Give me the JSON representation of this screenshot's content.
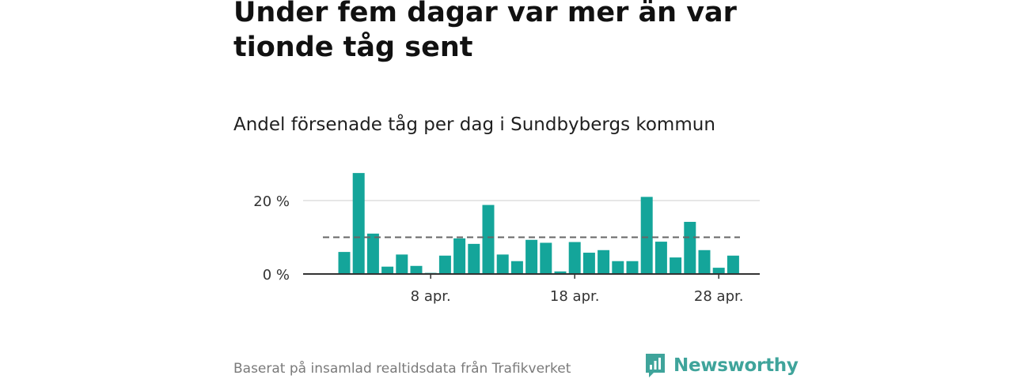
{
  "title": "Under fem dagar var mer än var tionde tåg sent",
  "subtitle": "Andel försenade tåg per dag i Sundbybergs kommun",
  "source": "Baserat på insamlad realtidsdata från Trafikverket",
  "brand": {
    "name": "Newsworthy",
    "color": "#3fa49b",
    "icon": "newsworthy-logo-icon"
  },
  "chart_data": {
    "type": "bar",
    "x_start_day": 2,
    "month_label": "apr.",
    "values": [
      6,
      27.5,
      11,
      2,
      5.3,
      2.2,
      0.3,
      5,
      9.7,
      8.2,
      18.8,
      5.3,
      3.5,
      9.3,
      8.5,
      0.7,
      8.7,
      5.8,
      6.5,
      3.5,
      3.5,
      21,
      8.8,
      4.5,
      14.2,
      6.5,
      1.7,
      5
    ],
    "reference_line": 10,
    "x_ticks": [
      "8 apr.",
      "18 apr.",
      "28 apr."
    ],
    "x_tick_days": [
      8,
      18,
      28
    ],
    "y_ticks": [
      "0 %",
      "20 %"
    ],
    "y_tick_values": [
      0,
      20
    ],
    "ylim": [
      0,
      28
    ],
    "bar_color": "#14a59a",
    "reference_color": "#666666",
    "grid": true
  }
}
